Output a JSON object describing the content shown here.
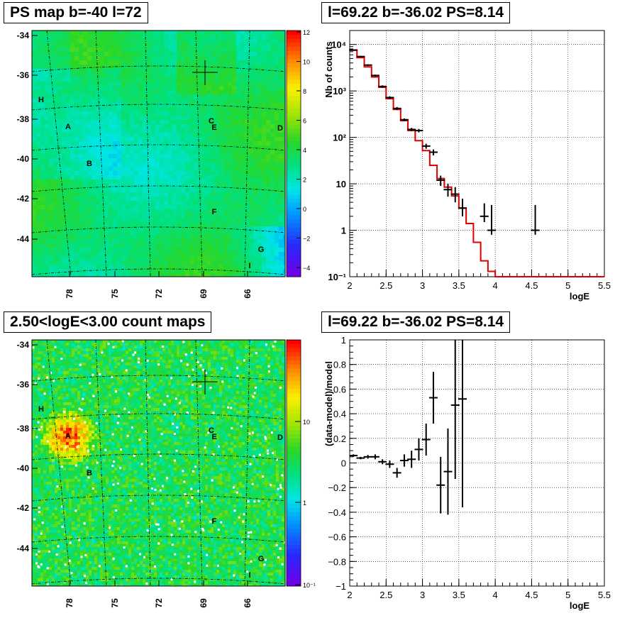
{
  "panels": {
    "tl_title": "PS map b=-40 l=72",
    "tr_title": "l=69.22 b=-36.02 PS=8.14",
    "bl_title": "2.50<logE<3.00 count maps",
    "br_title": "l=69.22 b=-36.02 PS=8.14"
  },
  "maps": {
    "y_ticks": [
      "-34",
      "-36",
      "-38",
      "-40",
      "-42",
      "-44"
    ],
    "x_ticks": [
      "78",
      "75",
      "72",
      "69",
      "66"
    ],
    "labels": [
      "H",
      "A",
      "B",
      "C",
      "E",
      "D",
      "F",
      "G",
      "I"
    ],
    "ps_colorbar_ticks": [
      "12",
      "10",
      "8",
      "6",
      "4",
      "2",
      "0",
      "−2",
      "−4"
    ],
    "count_colorbar_ticks": [
      "10",
      "1",
      "10⁻¹"
    ]
  },
  "chart_data": [
    {
      "type": "step",
      "xlabel": "logE",
      "ylabel": "Nb of counts",
      "xlim": [
        2,
        5.5
      ],
      "ylim": [
        0.1,
        20000
      ],
      "log_y": true,
      "grid": true,
      "x_ticks": [
        "2",
        "2.5",
        "3",
        "3.5",
        "4",
        "4.5",
        "5",
        "5.5"
      ],
      "y_ticks": [
        "10⁻¹",
        "1",
        "10",
        "10²",
        "10³",
        "10⁴"
      ],
      "model": {
        "color": "#e00000",
        "edges": [
          2.0,
          2.1,
          2.2,
          2.3,
          2.4,
          2.5,
          2.6,
          2.7,
          2.8,
          2.9,
          3.0,
          3.1,
          3.2,
          3.3,
          3.4,
          3.5,
          3.6,
          3.7,
          3.8,
          3.9,
          4.0,
          5.5
        ],
        "values": [
          7500,
          5200,
          3300,
          2000,
          1200,
          680,
          400,
          230,
          140,
          85,
          52,
          25,
          13,
          8.5,
          5.5,
          3.0,
          1.4,
          0.55,
          0.22,
          0.13,
          0.1
        ]
      },
      "data": {
        "color": "#000000",
        "x": [
          2.05,
          2.15,
          2.25,
          2.35,
          2.45,
          2.55,
          2.65,
          2.75,
          2.85,
          2.95,
          3.05,
          3.15,
          3.25,
          3.35,
          3.45,
          3.55,
          3.85,
          3.95,
          4.55
        ],
        "y": [
          7600,
          5500,
          3600,
          2150,
          1250,
          720,
          420,
          240,
          148,
          140,
          65,
          48,
          12,
          7.5,
          6,
          3,
          2,
          1,
          1
        ],
        "err_lo": [
          7400,
          5300,
          3450,
          2050,
          1180,
          670,
          390,
          225,
          136,
          128,
          57,
          41,
          9,
          5.3,
          4,
          2,
          1.5,
          0.8,
          0.8
        ],
        "err_hi": [
          7800,
          5700,
          3750,
          2250,
          1320,
          770,
          450,
          255,
          160,
          152,
          73,
          55,
          15,
          10,
          8.5,
          4.8,
          3.8,
          3.5,
          3.5
        ]
      }
    },
    {
      "type": "errorbar",
      "xlabel": "logE",
      "ylabel": "(data-model)/model",
      "xlim": [
        2,
        5.5
      ],
      "ylim": [
        -1,
        1
      ],
      "grid": true,
      "x_ticks": [
        "2",
        "2.5",
        "3",
        "3.5",
        "4",
        "4.5",
        "5",
        "5.5"
      ],
      "y_ticks": [
        "−1",
        "−0.8",
        "−0.6",
        "−0.4",
        "−0.2",
        "0",
        "0.2",
        "0.4",
        "0.6",
        "0.8",
        "1"
      ],
      "x": [
        2.05,
        2.15,
        2.25,
        2.35,
        2.45,
        2.55,
        2.65,
        2.75,
        2.85,
        2.95,
        3.05,
        3.15,
        3.25,
        3.35,
        3.45,
        3.55
      ],
      "y": [
        0.06,
        0.04,
        0.05,
        0.05,
        0.01,
        -0.01,
        -0.08,
        0.02,
        0.03,
        0.11,
        0.19,
        0.53,
        -0.18,
        -0.07,
        0.47,
        0.52
      ],
      "err": [
        0.01,
        0.01,
        0.015,
        0.02,
        0.02,
        0.03,
        0.04,
        0.05,
        0.07,
        0.09,
        0.13,
        0.21,
        0.23,
        0.35,
        0.6,
        0.88
      ]
    }
  ],
  "colors": {
    "model_line": "#e00000",
    "data_points": "#000000",
    "map_graticule": "#000000"
  }
}
